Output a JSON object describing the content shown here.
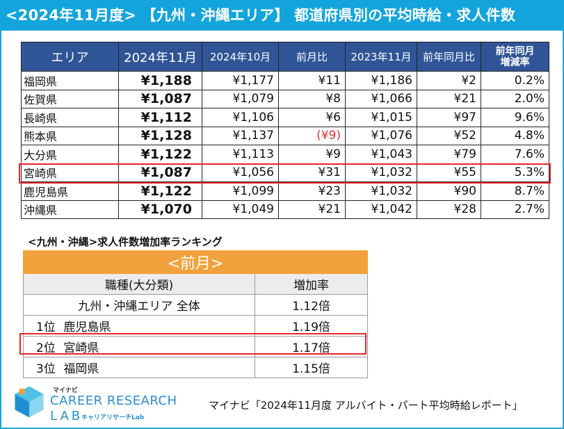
{
  "header": {
    "title": "<2024年11月度> 【九州・沖縄エリア】 都道府県別の平均時給・求人件数"
  },
  "main_table": {
    "columns": [
      "エリア",
      "2024年11月",
      "2024年10月",
      "前月比",
      "2023年11月",
      "前年同月比",
      "前年同月増減率"
    ],
    "column_line1": "前年同月",
    "column_line2": "増減率",
    "rows": [
      [
        "福岡県",
        "¥1,188",
        "¥1,177",
        "¥11",
        "¥1,186",
        "¥2",
        "0.2%"
      ],
      [
        "佐賀県",
        "¥1,087",
        "¥1,079",
        "¥8",
        "¥1,066",
        "¥21",
        "2.0%"
      ],
      [
        "長崎県",
        "¥1,112",
        "¥1,106",
        "¥6",
        "¥1,015",
        "¥97",
        "9.6%"
      ],
      [
        "熊本県",
        "¥1,128",
        "¥1,137",
        "(¥9)",
        "¥1,076",
        "¥52",
        "4.8%"
      ],
      [
        "大分県",
        "¥1,122",
        "¥1,113",
        "¥9",
        "¥1,043",
        "¥79",
        "7.6%"
      ],
      [
        "宮崎県",
        "¥1,087",
        "¥1,056",
        "¥31",
        "¥1,032",
        "¥55",
        "5.3%"
      ],
      [
        "鹿児島県",
        "¥1,122",
        "¥1,099",
        "¥23",
        "¥1,032",
        "¥90",
        "8.7%"
      ],
      [
        "沖縄県",
        "¥1,070",
        "¥1,049",
        "¥21",
        "¥1,042",
        "¥28",
        "2.7%"
      ]
    ],
    "highlighted_row": "宮崎県",
    "negative_color": "#e03030",
    "header_color": "#2f5597"
  },
  "ranking": {
    "title": "<九州・沖縄>求人件数増加率ランキング",
    "period": "<前月>",
    "col_job": "職種(大分類)",
    "col_rate": "増加率",
    "overall": {
      "label": "九州・沖縄エリア 全体",
      "rate": "1.12倍"
    },
    "items": [
      {
        "pos": "1位",
        "name": "鹿児島県",
        "rate": "1.19倍"
      },
      {
        "pos": "2位",
        "name": "宮崎県",
        "rate": "1.17倍"
      },
      {
        "pos": "3位",
        "name": "福岡県",
        "rate": "1.15倍"
      }
    ],
    "accent_color": "#f2a23c"
  },
  "logo": {
    "small": "マイナビ",
    "main": "CAREER RESEARCH",
    "lab": "LAB",
    "jp": "キャリアリサーチLab"
  },
  "source": "マイナビ「2024年11月度 アルバイト・パート平均時給レポート」"
}
